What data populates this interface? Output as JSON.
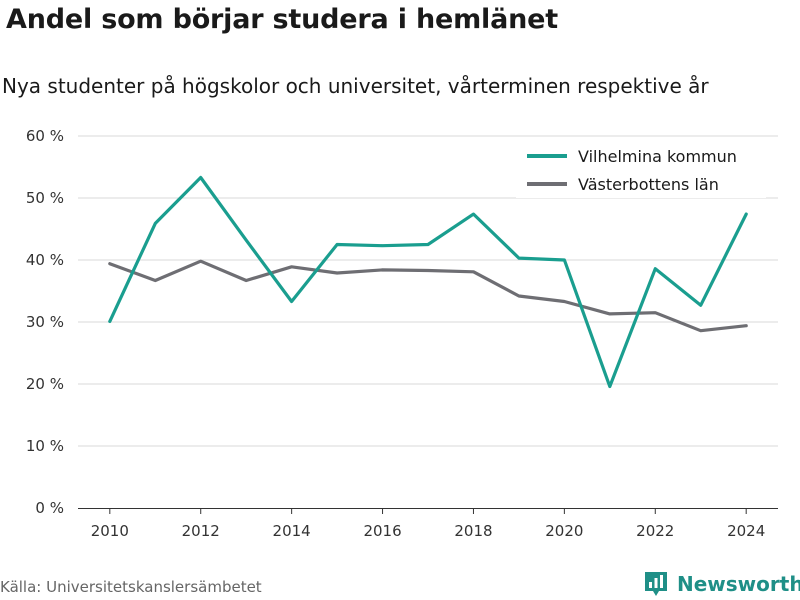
{
  "header": {
    "title": "Andel som börjar studera i hemlänet",
    "subtitle": "Nya studenter på högskolor och universitet, vårterminen respektive år"
  },
  "footer": {
    "source": "Källa: Universitetskanslersämbetet",
    "brand": "Newsworthy",
    "brand_icon": "newsworthy-logo-icon"
  },
  "chart_data": {
    "type": "line",
    "x": [
      2010,
      2011,
      2012,
      2013,
      2014,
      2015,
      2016,
      2017,
      2018,
      2019,
      2020,
      2021,
      2022,
      2023,
      2024
    ],
    "series": [
      {
        "name": "Vilhelmina kommun",
        "color": "#1a9e8f",
        "values": [
          30.1,
          45.9,
          53.3,
          43.2,
          33.3,
          42.5,
          42.3,
          42.5,
          47.4,
          40.3,
          40.0,
          19.6,
          38.6,
          32.7,
          47.4
        ]
      },
      {
        "name": "Västerbottens län",
        "color": "#6e6e73",
        "values": [
          39.4,
          36.7,
          39.8,
          36.7,
          38.9,
          37.9,
          38.4,
          38.3,
          38.1,
          34.2,
          33.3,
          31.3,
          31.5,
          28.6,
          29.4
        ]
      }
    ],
    "xticks": [
      2010,
      2012,
      2014,
      2016,
      2018,
      2020,
      2022,
      2024
    ],
    "xtick_labels": [
      "2010",
      "2012",
      "2014",
      "2016",
      "2018",
      "2020",
      "2022",
      "2024"
    ],
    "yticks": [
      0,
      10,
      20,
      30,
      40,
      50,
      60
    ],
    "ytick_labels": [
      "0 %",
      "10 %",
      "20 %",
      "30 %",
      "40 %",
      "50 %",
      "60 %"
    ],
    "ylim": [
      0,
      60
    ],
    "xlim": [
      2009.3,
      2024.7
    ],
    "grid": true,
    "legend_position": "top-right"
  }
}
